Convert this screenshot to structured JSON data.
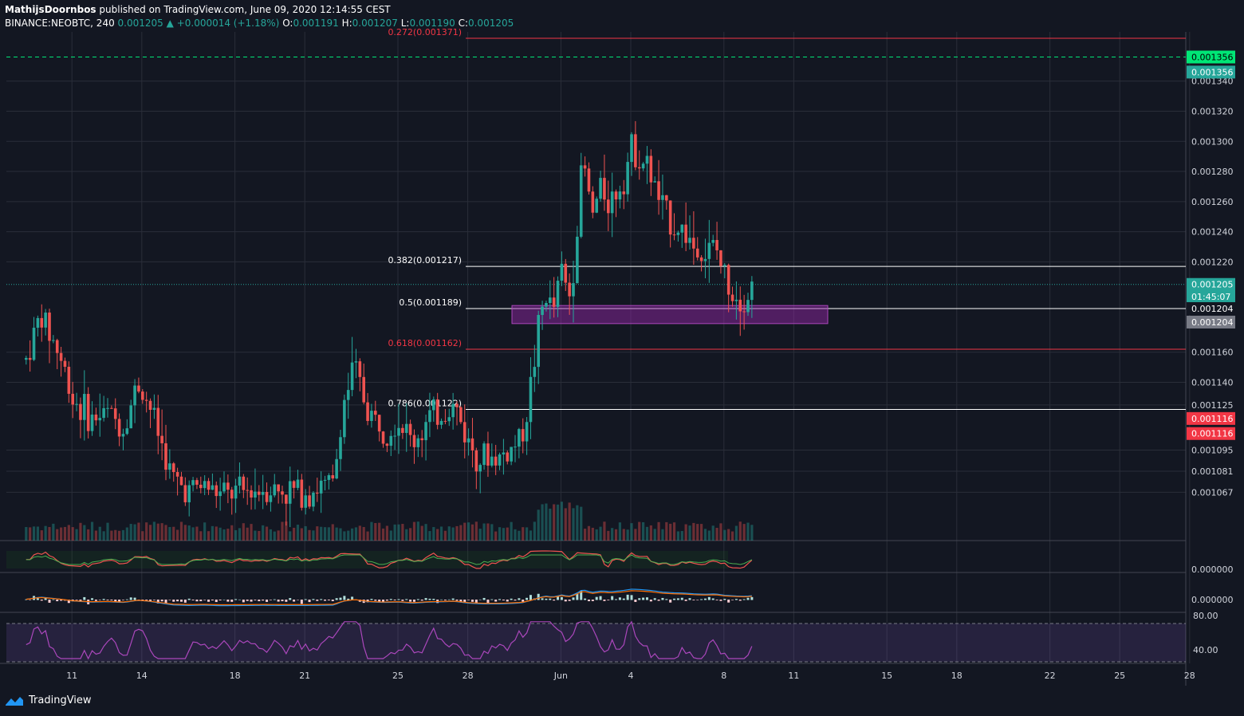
{
  "header": {
    "line1_author": "MathijsDoornbos",
    "line1_rest": "published on TradingView.com, June 09, 2020 12:14:55 CEST",
    "symbol": "BINANCE:NEOBTC, 240",
    "last": "0.001205",
    "change": "▲ +0.000014 (+1.18%)",
    "o_label": "O:",
    "o": "0.001191",
    "h_label": "H:",
    "h": "0.001207",
    "l_label": "L:",
    "l": "0.001190",
    "c_label": "C:",
    "c": "0.001205"
  },
  "footer": {
    "brand": "TradingView",
    "icon": "tradingview-logo-icon"
  },
  "colors": {
    "bg": "#131722",
    "grid": "#2a2e39",
    "up": "#26a69a",
    "down": "#ef5350",
    "fib_red": "#f23645",
    "zone": "#9c27b0",
    "target": "#00e676"
  },
  "chart_data": {
    "type": "candlestick",
    "price_axis": {
      "ticks": [
        "0.001340",
        "0.001320",
        "0.001300",
        "0.001280",
        "0.001260",
        "0.001240",
        "0.001220",
        "0.001160",
        "0.001140",
        "0.001125",
        "0.001095",
        "0.001081",
        "0.001067"
      ],
      "tick_values": [
        0.00134,
        0.00132,
        0.0013,
        0.00128,
        0.00126,
        0.00124,
        0.00122,
        0.00116,
        0.00114,
        0.001125,
        0.001095,
        0.001081,
        0.001067
      ],
      "badges": [
        {
          "text": "0.001356",
          "value": 0.001356,
          "color": "#00e676",
          "textColor": "#000000"
        },
        {
          "text": "0.001356",
          "value": 0.001346,
          "color": "#26a69a",
          "textColor": "#ffffff"
        },
        {
          "text": "0.001205",
          "value": 0.001205,
          "color": "#26a69a",
          "textColor": "#ffffff"
        },
        {
          "text": "01:45:07",
          "value": 0.001197,
          "color": "#26a69a",
          "textColor": "#ffffff"
        },
        {
          "text": "0.001204",
          "value": 0.001189,
          "color": "#131722",
          "textColor": "#ffffff"
        },
        {
          "text": "0.001204",
          "value": 0.00118,
          "color": "#787b86",
          "textColor": "#ffffff"
        },
        {
          "text": "0.001116",
          "value": 0.001116,
          "color": "#f23645",
          "textColor": "#ffffff"
        },
        {
          "text": "0.001116",
          "value": 0.001106,
          "color": "#f23645",
          "textColor": "#ffffff"
        }
      ]
    },
    "time_axis": {
      "labels": [
        "11",
        "14",
        "18",
        "21",
        "25",
        "28",
        "Jun",
        "4",
        "8",
        "11",
        "15",
        "18",
        "22",
        "25",
        "28"
      ],
      "day_offsets": [
        1,
        4,
        8,
        11,
        15,
        18,
        22,
        25,
        29,
        32,
        36,
        39,
        43,
        46,
        49
      ]
    },
    "fib_levels": [
      {
        "label": "0.272(0.001371)",
        "value": 0.001371,
        "color": "#f23645"
      },
      {
        "label": "0.382(0.001217)",
        "value": 0.001217,
        "color": "#ffffff"
      },
      {
        "label": "0.5(0.001189)",
        "value": 0.001189,
        "color": "#ffffff"
      },
      {
        "label": "0.618(0.001162)",
        "value": 0.001162,
        "color": "#f23645"
      },
      {
        "label": "0.786(0.001122)",
        "value": 0.001122,
        "color": "#ffffff"
      }
    ],
    "target_line": 0.001356,
    "current_price": 0.001205,
    "support_zone": {
      "top": 0.001191,
      "bottom": 0.001179
    },
    "anchors": [
      [
        0,
        1155
      ],
      [
        0.6,
        1185
      ],
      [
        1.4,
        1160
      ],
      [
        2,
        1130
      ],
      [
        2.8,
        1115
      ],
      [
        3.5,
        1120
      ],
      [
        4.2,
        1110
      ],
      [
        4.8,
        1140
      ],
      [
        5.3,
        1125
      ],
      [
        5.8,
        1100
      ],
      [
        6.3,
        1075
      ],
      [
        7,
        1068
      ],
      [
        7.6,
        1072
      ],
      [
        8.4,
        1065
      ],
      [
        9.3,
        1067
      ],
      [
        10.2,
        1070
      ],
      [
        11,
        1068
      ],
      [
        12,
        1068
      ],
      [
        13.2,
        1072
      ],
      [
        13.6,
        1125
      ],
      [
        14.1,
        1150
      ],
      [
        14.7,
        1120
      ],
      [
        15.3,
        1110
      ],
      [
        16,
        1115
      ],
      [
        16.6,
        1100
      ],
      [
        17.3,
        1115
      ],
      [
        17.9,
        1120
      ],
      [
        18.4,
        1125
      ],
      [
        19,
        1100
      ],
      [
        19.6,
        1090
      ],
      [
        20.3,
        1090
      ],
      [
        20.8,
        1095
      ],
      [
        21.3,
        1105
      ],
      [
        21.7,
        1140
      ],
      [
        22,
        1175
      ],
      [
        22.3,
        1200
      ],
      [
        22.6,
        1185
      ],
      [
        23,
        1215
      ],
      [
        23.3,
        1195
      ],
      [
        23.6,
        1230
      ],
      [
        23.9,
        1290
      ],
      [
        24.3,
        1250
      ],
      [
        24.7,
        1270
      ],
      [
        25.1,
        1260
      ],
      [
        25.6,
        1275
      ],
      [
        26,
        1295
      ],
      [
        26.4,
        1290
      ],
      [
        26.9,
        1275
      ],
      [
        27.3,
        1255
      ],
      [
        27.8,
        1245
      ],
      [
        28.3,
        1240
      ],
      [
        28.7,
        1230
      ],
      [
        29.2,
        1225
      ],
      [
        29.6,
        1230
      ],
      [
        30,
        1210
      ],
      [
        30.5,
        1200
      ],
      [
        30.9,
        1195
      ],
      [
        31.2,
        1205
      ]
    ],
    "rsi": {
      "levels": [
        "80.00",
        "40.00"
      ],
      "level_values": [
        80,
        40
      ]
    },
    "macd": {
      "label": "0.000000"
    },
    "osc": {
      "label": "0.000000"
    }
  }
}
